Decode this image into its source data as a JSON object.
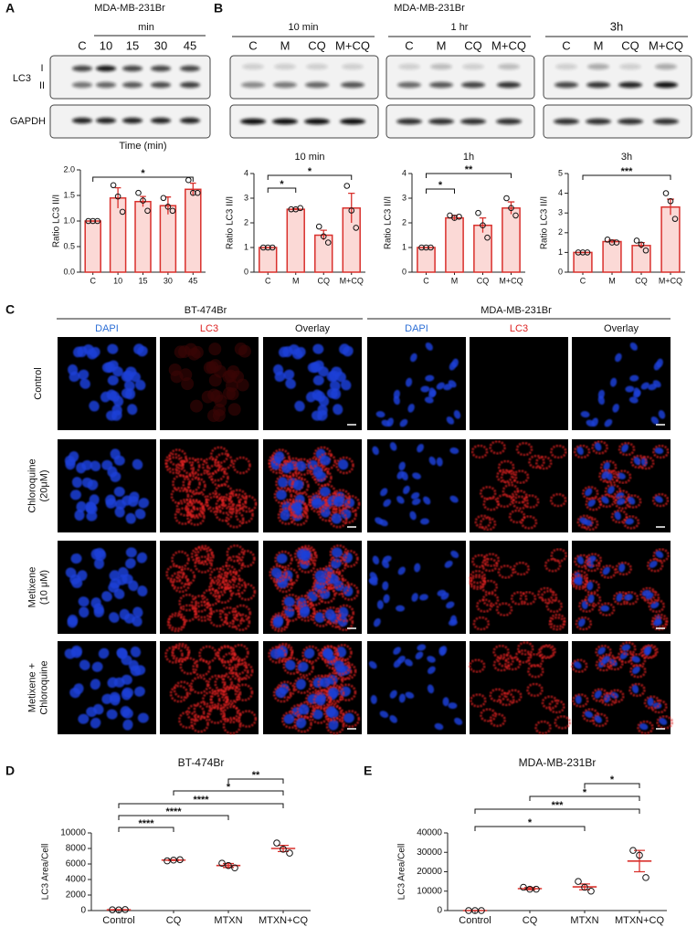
{
  "figure": {
    "panel_letters": [
      "A",
      "B",
      "C",
      "D",
      "E"
    ],
    "blot_a": {
      "title": "MDA-MB-231Br",
      "time_header": "min",
      "lanes": [
        "C",
        "10",
        "15",
        "30",
        "45"
      ],
      "rows": [
        "LC3",
        "GAPDH"
      ],
      "bands": [
        "I",
        "II"
      ]
    },
    "blot_b": {
      "title": "MDA-MB-231Br",
      "groups": [
        "10 min",
        "1 hr",
        "3h"
      ],
      "lanes": [
        "C",
        "M",
        "CQ",
        "M+CQ"
      ]
    },
    "microscopy": {
      "groups": [
        "BT-474Br",
        "MDA-MB-231Br"
      ],
      "channels": [
        "DAPI",
        "LC3",
        "Overlay"
      ],
      "rows": [
        [
          "Control"
        ],
        [
          "Chloroquine",
          "(20μM)"
        ],
        [
          "Metixene",
          "(10 μM)"
        ],
        [
          "Metixene +",
          "Chloroquine"
        ]
      ]
    }
  },
  "chart_data": [
    {
      "type": "bar",
      "title": "Time (min)",
      "y_label": "Ratio LC3 II/I",
      "categories": [
        "C",
        "10",
        "15",
        "30",
        "45"
      ],
      "values": [
        1,
        1.45,
        1.38,
        1.3,
        1.62
      ],
      "errors": [
        0,
        0.2,
        0.1,
        0.17,
        0.12
      ],
      "points": [
        [
          1,
          1,
          1
        ],
        [
          1.7,
          1.48,
          1.18
        ],
        [
          1.55,
          1.4,
          1.2
        ],
        [
          1.45,
          1.28,
          1.2
        ],
        [
          1.8,
          1.55,
          1.55
        ]
      ],
      "ylim": [
        0,
        2
      ],
      "yticks": [
        {
          "value": 0,
          "label": "0.0"
        },
        0.5,
        {
          "value": 1,
          "label": "1.0"
        },
        1.5,
        {
          "value": 2,
          "label": "2.0"
        }
      ],
      "color": "#d9302c",
      "fill": "#fbd9d6",
      "significance": [
        {
          "from": "C",
          "to": "45",
          "label": "*"
        }
      ]
    },
    {
      "type": "bar",
      "title": "10 min",
      "y_label": "Ratio LC3 II/I",
      "categories": [
        "C",
        "M",
        "CQ",
        "M+CQ"
      ],
      "values": [
        1,
        2.55,
        1.5,
        2.6
      ],
      "errors": [
        0,
        0.03,
        0.2,
        0.6
      ],
      "points": [
        [
          1,
          1,
          1
        ],
        [
          2.55,
          2.55,
          2.6
        ],
        [
          1.85,
          1.45,
          1.2
        ],
        [
          3.5,
          2.5,
          1.8
        ]
      ],
      "ylim": [
        0,
        4
      ],
      "yticks": [
        0,
        1,
        2,
        3,
        4
      ],
      "color": "#d9302c",
      "fill": "#fbd9d6",
      "significance": [
        {
          "from": "C",
          "to": "M",
          "label": "*"
        },
        {
          "from": "C",
          "to": "M+CQ",
          "label": "*"
        }
      ]
    },
    {
      "type": "bar",
      "title": "1h",
      "y_label": "Ratio LC3 II/I",
      "categories": [
        "C",
        "M",
        "CQ",
        "M+CQ"
      ],
      "values": [
        1,
        2.2,
        1.9,
        2.6
      ],
      "errors": [
        0,
        0.1,
        0.3,
        0.25
      ],
      "points": [
        [
          1,
          1,
          1
        ],
        [
          2.3,
          2.2,
          2.25
        ],
        [
          2.4,
          1.9,
          1.4
        ],
        [
          3,
          2.6,
          2.3
        ]
      ],
      "ylim": [
        0,
        4
      ],
      "yticks": [
        0,
        1,
        2,
        3,
        4
      ],
      "color": "#d9302c",
      "fill": "#fbd9d6",
      "significance": [
        {
          "from": "C",
          "to": "M",
          "label": "*"
        },
        {
          "from": "C",
          "to": "M+CQ",
          "label": "**"
        }
      ]
    },
    {
      "type": "bar",
      "title": "3h",
      "y_label": "Ratio LC3 II/I",
      "categories": [
        "C",
        "M",
        "CQ",
        "M+CQ"
      ],
      "values": [
        1,
        1.55,
        1.35,
        3.3
      ],
      "errors": [
        0,
        0.08,
        0.15,
        0.4
      ],
      "points": [
        [
          1,
          1,
          1
        ],
        [
          1.65,
          1.5,
          1.5
        ],
        [
          1.6,
          1.4,
          1.1
        ],
        [
          4,
          3.6,
          2.7
        ]
      ],
      "ylim": [
        0,
        5
      ],
      "yticks": [
        0,
        1,
        2,
        3,
        4,
        5
      ],
      "color": "#d9302c",
      "fill": "#fbd9d6",
      "significance": [
        {
          "from": "C",
          "to": "M+CQ",
          "label": "***"
        }
      ]
    },
    {
      "type": "dot",
      "title": "BT-474Br",
      "y_label": "LC3 Area/Cell",
      "categories": [
        "Control",
        "CQ",
        "MTXN",
        "MTXN+CQ"
      ],
      "values": [
        100,
        6500,
        5800,
        8000
      ],
      "errors": [
        20,
        60,
        250,
        400
      ],
      "points": [
        [
          100,
          80,
          120
        ],
        [
          6400,
          6500,
          6550
        ],
        [
          6100,
          5800,
          5500
        ],
        [
          8700,
          7900,
          7400
        ]
      ],
      "ylim": [
        0,
        10000
      ],
      "yticks": [
        0,
        2000,
        4000,
        6000,
        8000,
        10000
      ],
      "color": "#d9302c",
      "significance": [
        {
          "from": "MTXN",
          "to": "MTXN+CQ",
          "label": "**"
        },
        {
          "from": "CQ",
          "to": "MTXN+CQ",
          "label": "*"
        },
        {
          "from": "Control",
          "to": "MTXN+CQ",
          "label": "****"
        },
        {
          "from": "Control",
          "to": "MTXN",
          "label": "****"
        },
        {
          "from": "Control",
          "to": "CQ",
          "label": "****"
        }
      ]
    },
    {
      "type": "dot",
      "title": "MDA-MB-231Br",
      "y_label": "LC3 Area/Cell",
      "categories": [
        "Control",
        "CQ",
        "MTXN",
        "MTXN+CQ"
      ],
      "values": [
        0,
        11300,
        12200,
        25500
      ],
      "errors": [
        0,
        600,
        1500,
        5500
      ],
      "points": [
        [
          0,
          0,
          0
        ],
        [
          12000,
          11000,
          11000
        ],
        [
          15000,
          12000,
          10000
        ],
        [
          31000,
          28500,
          17000
        ]
      ],
      "ylim": [
        0,
        40000
      ],
      "yticks": [
        0,
        10000,
        20000,
        30000,
        40000
      ],
      "color": "#d9302c",
      "significance": [
        {
          "from": "MTXN",
          "to": "MTXN+CQ",
          "label": "*"
        },
        {
          "from": "CQ",
          "to": "MTXN+CQ",
          "label": "*"
        },
        {
          "from": "Control",
          "to": "MTXN+CQ",
          "label": "***"
        },
        {
          "from": "Control",
          "to": "MTXN",
          "label": "*"
        }
      ]
    }
  ]
}
